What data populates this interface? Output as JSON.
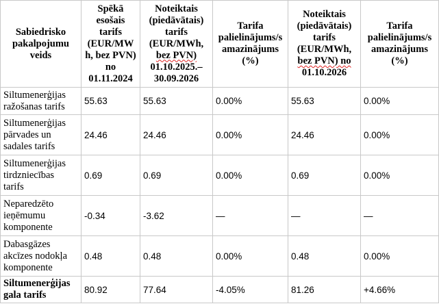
{
  "table": {
    "headers": [
      "Sabiedrisko pakalpojumu veids",
      "Spēkā esošais tarifs (EUR/MWh, bez PVN) no 01.11.2024",
      "Noteiktais (piedāvātais) tarifs (EUR/MWh, bez PVN) 01.10.2025.–30.09.2026",
      "Tarifa palielinājums/samazinājums (%)",
      "Noteiktais (piedāvātais) tarifs (EUR/MWh, bez PVN) no 01.10.2026",
      "Tarifa palielinājums/samazinājums (%)"
    ],
    "header_lines": {
      "c0": [
        "Sabiedrisko",
        "pakalpojumu",
        "veids"
      ],
      "c1": [
        "Spēkā",
        "esošais",
        "tarifs",
        "(EUR/MW",
        "h, bez PVN)",
        "no",
        "01.11.2024"
      ],
      "c2": [
        "Noteiktais",
        "(piedāvātais)",
        "tarifs",
        "(EUR/MWh,",
        "bez PVN)",
        "01.10.2025.–",
        "30.09.2026"
      ],
      "c3": [
        "Tarifa",
        "palielinājums/s",
        "amazinājums",
        "(%)"
      ],
      "c4": [
        "Noteiktais",
        "(piedāvātais)",
        "tarifs",
        "(EUR/MWh,",
        "bez PVN) no",
        "01.10.2026"
      ],
      "c5": [
        "Tarifa",
        "palielinājums/s",
        "amazinājums",
        "(%)"
      ]
    },
    "rows": [
      {
        "label_lines": [
          "Siltumenerģijas",
          "ražošanas tarifs"
        ],
        "values": [
          "55.63",
          "55.63",
          "0.00%",
          "55.63",
          "0.00%"
        ]
      },
      {
        "label_lines": [
          "Siltumenerģijas",
          "pārvades un",
          "sadales tarifs"
        ],
        "values": [
          "24.46",
          "24.46",
          "0.00%",
          "24.46",
          "0.00%"
        ]
      },
      {
        "label_lines": [
          "Siltumenerģijas",
          "tirdzniecības",
          "tarifs"
        ],
        "values": [
          "0.69",
          "0.69",
          "0.00%",
          "0.69",
          "0.00%"
        ]
      },
      {
        "label_lines": [
          "Neparedzēto",
          "ieņēmumu",
          "komponente"
        ],
        "values": [
          "-0.34",
          "-3.62",
          "—",
          "—",
          "—"
        ]
      },
      {
        "label_lines": [
          "Dabasgāzes",
          "akcīzes nodokļa",
          "komponente"
        ],
        "values": [
          "0.48",
          "0.48",
          "0.00%",
          "0.48",
          "0.00%"
        ]
      },
      {
        "label_lines": [
          "Siltumenerģijas",
          "gala tarifs"
        ],
        "values": [
          "80.92",
          "77.64",
          "-4.05%",
          "81.26",
          "+4.66%"
        ]
      }
    ]
  }
}
